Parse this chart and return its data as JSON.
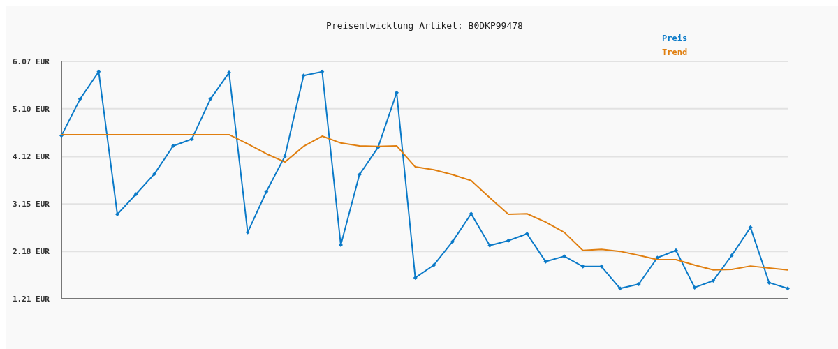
{
  "chart_data": {
    "type": "line",
    "title": "Preisentwicklung Artikel: B0DKP99478",
    "categories": [
      null,
      null,
      null,
      null,
      null,
      null,
      null,
      null,
      null,
      null,
      null,
      null,
      null,
      null,
      null,
      null,
      null,
      null,
      null,
      null,
      null,
      null,
      null,
      null,
      null,
      null,
      null,
      null,
      null,
      null,
      null,
      null,
      null,
      null,
      null,
      null,
      null,
      null,
      null,
      null
    ],
    "series": [
      {
        "name": "Preis",
        "color": "#0b7ac8",
        "marker": "diamond",
        "values": [
          4.55,
          5.3,
          5.86,
          2.94,
          3.35,
          3.77,
          4.34,
          4.48,
          5.3,
          5.84,
          2.57,
          3.4,
          4.13,
          5.78,
          5.86,
          2.31,
          3.75,
          4.31,
          5.43,
          1.64,
          1.9,
          2.38,
          2.95,
          2.3,
          2.4,
          2.54,
          1.97,
          2.08,
          1.87,
          1.87,
          1.42,
          1.51,
          2.05,
          2.2,
          1.44,
          1.58,
          2.1,
          2.67,
          1.54,
          1.42
        ]
      },
      {
        "name": "Trend",
        "color": "#e07f10",
        "marker": "none",
        "values": [
          4.57,
          4.57,
          4.57,
          4.57,
          4.57,
          4.57,
          4.57,
          4.57,
          4.57,
          4.57,
          4.38,
          4.18,
          4.01,
          4.33,
          4.54,
          4.4,
          4.34,
          4.33,
          4.34,
          3.91,
          3.85,
          3.75,
          3.63,
          3.28,
          2.94,
          2.95,
          2.78,
          2.57,
          2.2,
          2.22,
          2.18,
          2.1,
          2.01,
          2.01,
          1.9,
          1.8,
          1.81,
          1.88,
          1.84,
          1.8
        ]
      }
    ],
    "ylim": [
      1.21,
      6.07
    ],
    "yticks": [
      {
        "value": 1.21,
        "label": "1.21 EUR"
      },
      {
        "value": 2.18,
        "label": "2.18 EUR"
      },
      {
        "value": 3.15,
        "label": "3.15 EUR"
      },
      {
        "value": 4.12,
        "label": "4.12 EUR"
      },
      {
        "value": 5.1,
        "label": "5.10 EUR"
      },
      {
        "value": 6.07,
        "label": "6.07 EUR"
      }
    ],
    "grid": "y",
    "tick_labels": "y",
    "legend": "top right",
    "line_style": "solid"
  }
}
